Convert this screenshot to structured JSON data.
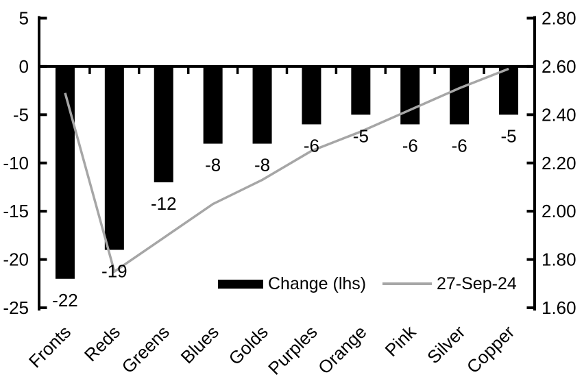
{
  "chart_data": {
    "type": "bar",
    "subtype": "combo-bar-line-dual-axis",
    "title": "",
    "background": "#ffffff",
    "axis_color": "#000000",
    "grid": false,
    "categories": [
      "Fronts",
      "Reds",
      "Greens",
      "Blues",
      "Golds",
      "Purples",
      "Orange",
      "Pink",
      "Silver",
      "Copper"
    ],
    "series": [
      {
        "name": "Change (lhs)",
        "type": "bar",
        "axis": "left",
        "color": "#000000",
        "values": [
          -22,
          -19,
          -12,
          -8,
          -8,
          -6,
          -5,
          -6,
          -6,
          -5
        ],
        "data_labels": [
          "-22",
          "-19",
          "-12",
          "-8",
          "-8",
          "-6",
          "-5",
          "-6",
          "-6",
          "-5"
        ]
      },
      {
        "name": "27-Sep-24",
        "type": "line",
        "axis": "right",
        "color": "#a6a6a6",
        "values": [
          2.49,
          1.75,
          1.89,
          2.03,
          2.13,
          2.25,
          2.33,
          2.42,
          2.51,
          2.59
        ]
      }
    ],
    "left_axis": {
      "min": -25,
      "max": 5,
      "tick_labels": [
        "5",
        "0",
        "-5",
        "-10",
        "-15",
        "-20",
        "-25"
      ]
    },
    "right_axis": {
      "min": 1.6,
      "max": 2.8,
      "tick_labels": [
        "2.80",
        "2.60",
        "2.40",
        "2.20",
        "2.00",
        "1.80",
        "1.60"
      ]
    },
    "legend": {
      "position": "bottom-inside",
      "items": [
        {
          "label": "Change (lhs)",
          "swatch": "bar",
          "color": "#000000"
        },
        {
          "label": "27-Sep-24",
          "swatch": "line",
          "color": "#a6a6a6"
        }
      ]
    }
  }
}
